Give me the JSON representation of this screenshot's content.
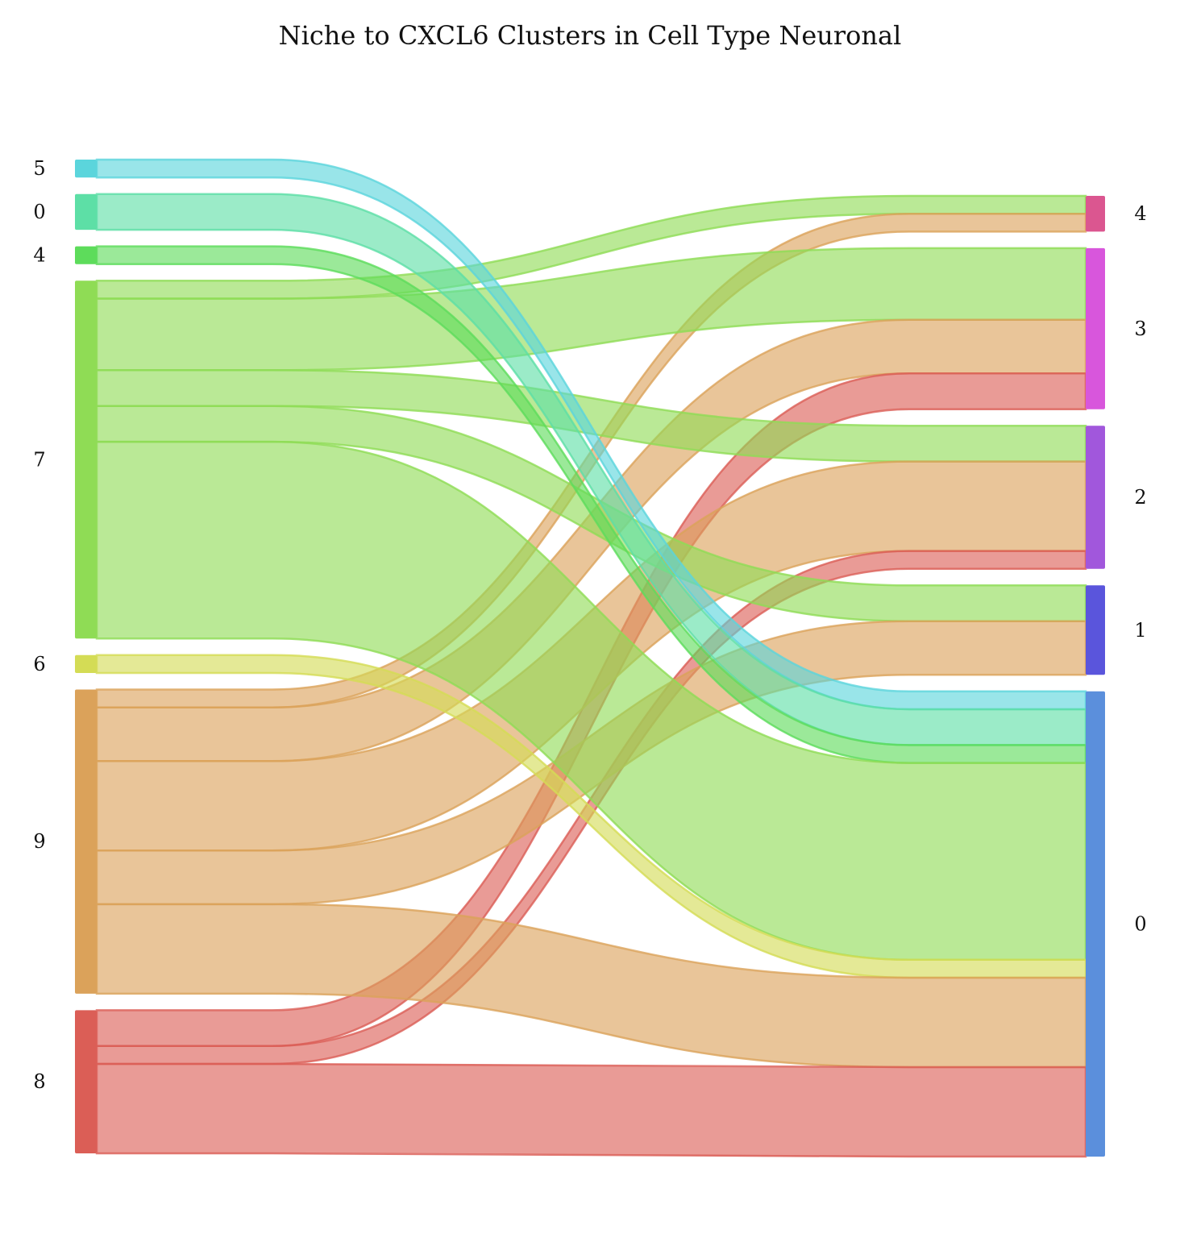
{
  "chart_data": {
    "type": "sankey",
    "title": "Niche to CXCL6 Clusters in Cell Type Neuronal",
    "source_nodes": [
      {
        "id": "5",
        "label": "5",
        "color": "#5bd5dc"
      },
      {
        "id": "0",
        "label": "0",
        "color": "#5ddfa6"
      },
      {
        "id": "4",
        "label": "4",
        "color": "#5ddc5b"
      },
      {
        "id": "7",
        "label": "7",
        "color": "#8fdc55"
      },
      {
        "id": "6",
        "label": "6",
        "color": "#d4dc55"
      },
      {
        "id": "9",
        "label": "9",
        "color": "#dba25a"
      },
      {
        "id": "8",
        "label": "8",
        "color": "#db5e56"
      }
    ],
    "target_nodes": [
      {
        "id": "4",
        "label": "4",
        "color": "#db5690"
      },
      {
        "id": "3",
        "label": "3",
        "color": "#d856dc"
      },
      {
        "id": "2",
        "label": "2",
        "color": "#a157dc"
      },
      {
        "id": "1",
        "label": "1",
        "color": "#5a55dc"
      },
      {
        "id": "0",
        "label": "0",
        "color": "#5b8fdc"
      }
    ],
    "links": [
      {
        "source": "7",
        "target": "4",
        "value": 1
      },
      {
        "source": "9",
        "target": "4",
        "value": 1
      },
      {
        "source": "7",
        "target": "3",
        "value": 4
      },
      {
        "source": "9",
        "target": "3",
        "value": 3
      },
      {
        "source": "8",
        "target": "3",
        "value": 2
      },
      {
        "source": "7",
        "target": "2",
        "value": 2
      },
      {
        "source": "9",
        "target": "2",
        "value": 5
      },
      {
        "source": "8",
        "target": "2",
        "value": 1
      },
      {
        "source": "7",
        "target": "1",
        "value": 2
      },
      {
        "source": "9",
        "target": "1",
        "value": 3
      },
      {
        "source": "5",
        "target": "0",
        "value": 1
      },
      {
        "source": "0",
        "target": "0",
        "value": 2
      },
      {
        "source": "4",
        "target": "0",
        "value": 1
      },
      {
        "source": "7",
        "target": "0",
        "value": 11
      },
      {
        "source": "6",
        "target": "0",
        "value": 1
      },
      {
        "source": "9",
        "target": "0",
        "value": 5
      },
      {
        "source": "8",
        "target": "0",
        "value": 5
      }
    ]
  }
}
